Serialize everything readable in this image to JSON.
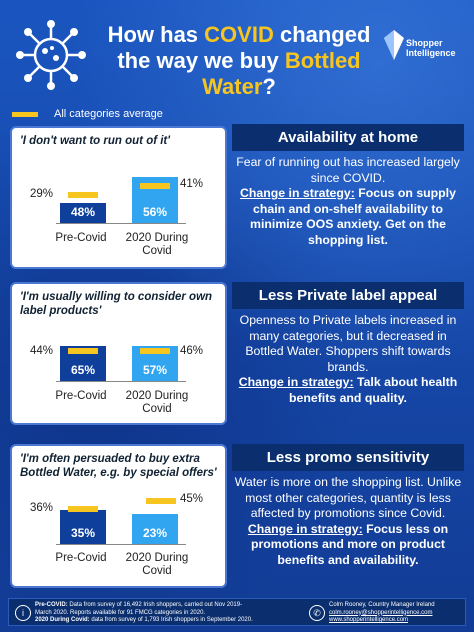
{
  "title": {
    "p1": "How has ",
    "h1": "COVID",
    "p2": " changed the way we buy ",
    "h2": "Bottled Water",
    "p3": "?"
  },
  "logo": {
    "line1": "Shopper",
    "line2": "Intelligence"
  },
  "legend": {
    "label": "All categories average"
  },
  "colors": {
    "background": "#1546a6",
    "dark_bar": "#0e3f9a",
    "light_bar": "#32a5f0",
    "average": "#f7c520",
    "header": "#0a2e6e"
  },
  "chart_data": [
    {
      "type": "bar",
      "quote": "'I don't want to run out of it'",
      "categories": [
        "Pre-Covid",
        "2020 During Covid"
      ],
      "series": [
        {
          "name": "Bottled Water",
          "values": [
            48,
            56
          ]
        },
        {
          "name": "All categories average",
          "values": [
            29,
            41
          ]
        }
      ]
    },
    {
      "type": "bar",
      "quote": "'I'm usually willing to consider own label products'",
      "categories": [
        "Pre-Covid",
        "2020 During Covid"
      ],
      "series": [
        {
          "name": "Bottled Water",
          "values": [
            65,
            57
          ]
        },
        {
          "name": "All categories average",
          "values": [
            44,
            46
          ]
        }
      ]
    },
    {
      "type": "bar",
      "quote": "'I'm often persuaded to buy extra Bottled Water, e.g. by special offers'",
      "categories": [
        "Pre-Covid",
        "2020 During Covid"
      ],
      "series": [
        {
          "name": "Bottled Water",
          "values": [
            35,
            23
          ]
        },
        {
          "name": "All categories average",
          "values": [
            36,
            45
          ]
        }
      ]
    }
  ],
  "labels": {
    "p1": {
      "b1": "48%",
      "b2": "56%",
      "a1": "29%",
      "a2": "41%",
      "x1": "Pre-Covid",
      "x2a": "2020 During",
      "x2b": "Covid"
    },
    "p2": {
      "b1": "65%",
      "b2": "57%",
      "a1": "44%",
      "a2": "46%",
      "x1": "Pre-Covid",
      "x2a": "2020 During",
      "x2b": "Covid"
    },
    "p3": {
      "b1": "35%",
      "b2": "23%",
      "a1": "36%",
      "a2": "45%",
      "x1": "Pre-Covid",
      "x2a": "2020 During",
      "x2b": "Covid"
    }
  },
  "sections": [
    {
      "heading": "Availability at home",
      "text": "Fear of running out has increased largely since COVID.",
      "cs": "Change in strategy:",
      "cs_text": " Focus on supply chain and on-shelf availability to minimize OOS anxiety. Get on the shopping list."
    },
    {
      "heading": "Less Private label appeal",
      "text": "Openness to Private labels increased in many categories, but it decreased in Bottled Water. Shoppers shift towards brands.",
      "cs": "Change in strategy:",
      "cs_text": " Talk about health benefits and quality."
    },
    {
      "heading": "Less promo sensitivity",
      "text": "Water is more on the shopping list. Unlike most other categories, quantity is less affected by promotions  since Covid.",
      "cs": "Change in strategy:",
      "cs_text": " Focus less on promotions and more on product benefits and availability."
    }
  ],
  "footer": {
    "l1a": "Pre-COVID:",
    "l1b": " Data from survey of 16,492 Irish shoppers, carried out Nov 2019-",
    "l2": "March 2020. Reports available for 91 FMCG categories in 2020.",
    "l3a": "2020 During Covid:",
    "l3b": " data from survey of 1,793 Irish shoppers in September 2020.",
    "r1": "Colm Rooney, Country Manager Ireland",
    "r2": "colm.rooney@shopperintelligence.com",
    "r3": "www.shopperintelligence.com"
  }
}
